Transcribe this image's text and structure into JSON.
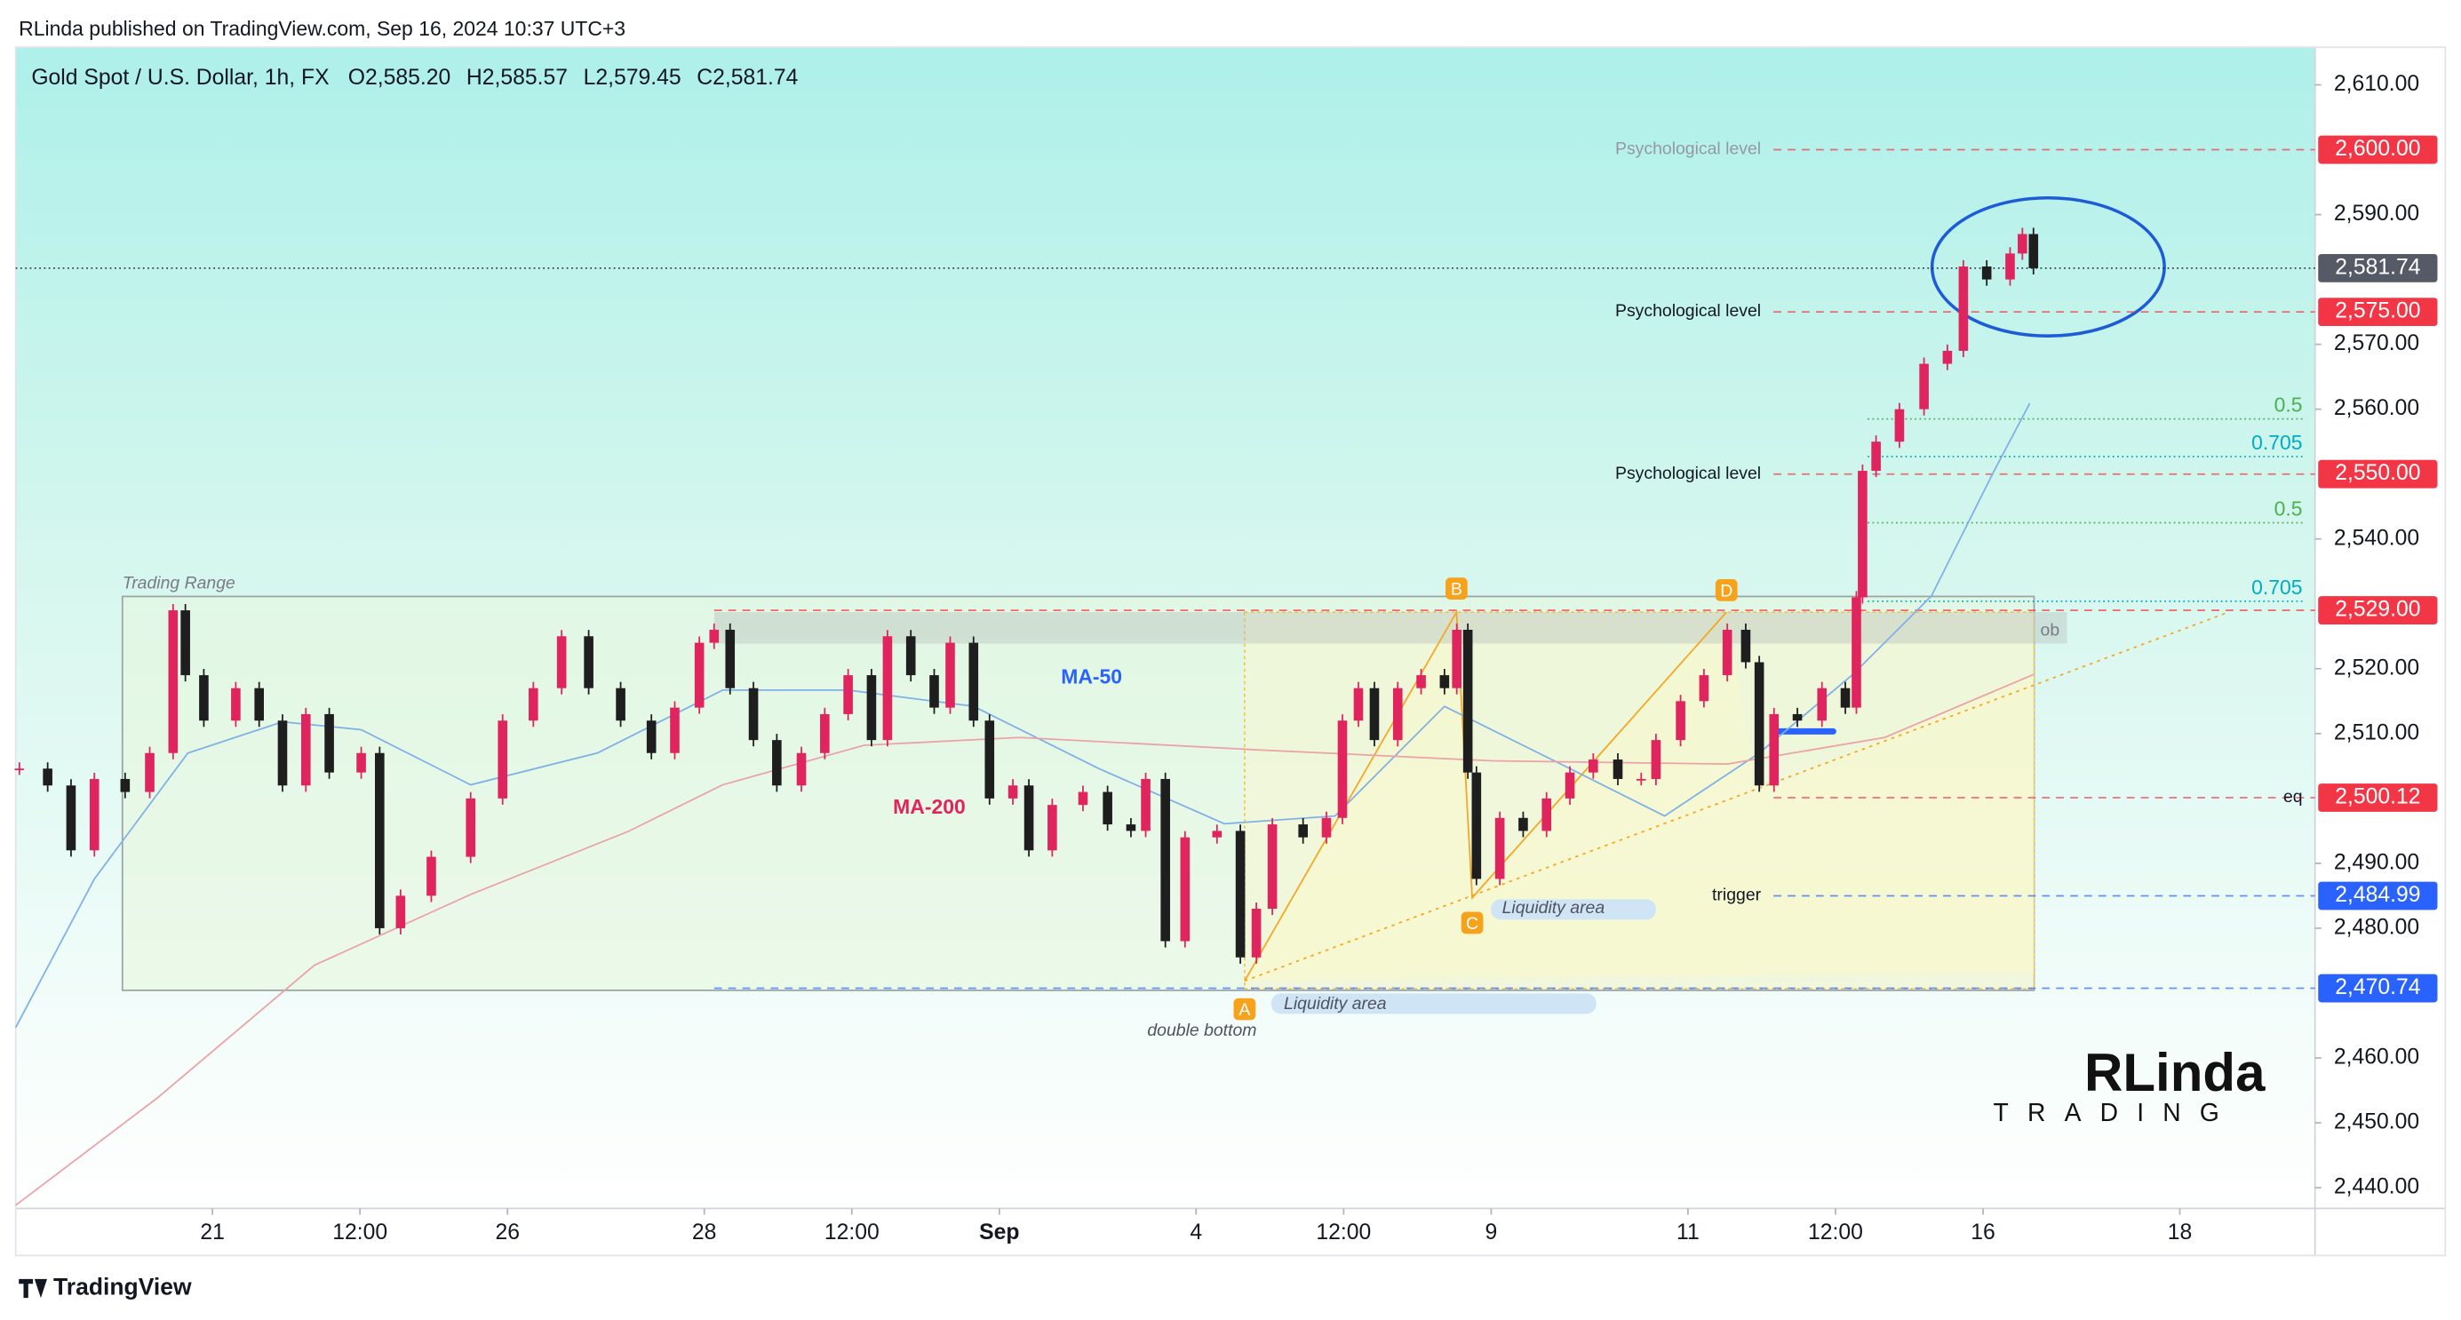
{
  "header": "RLinda published on TradingView.com, Sep 16, 2024 10:37 UTC+3",
  "footer": "TradingView",
  "logo": {
    "name": "RLinda",
    "sub": "TRADING"
  },
  "chart_data": {
    "type": "candlestick",
    "title": "Gold Spot / U.S. Dollar, 1h, FX",
    "ohlc": [
      {
        "name": "O",
        "value": 2585.2,
        "label": "2,585.20"
      },
      {
        "name": "H",
        "value": 2585.57,
        "label": "2,585.57"
      },
      {
        "name": "L",
        "value": 2579.45,
        "label": "2,579.45"
      },
      {
        "name": "C",
        "value": 2581.74,
        "label": "2,581.74"
      }
    ],
    "up_color": "#e0245e",
    "down_color": "#1e1e1e",
    "x": [
      0.3,
      2.6,
      4.5,
      6.4,
      8.9,
      10.9,
      12.8,
      13.8,
      15.3,
      17.9,
      19.8,
      21.7,
      23.6,
      25.5,
      28.1,
      29.6,
      31.3,
      33.8,
      37.0,
      39.6,
      42.1,
      44.4,
      46.6,
      49.2,
      51.7,
      53.6,
      55.6,
      56.8,
      58.1,
      60.0,
      61.9,
      63.9,
      65.8,
      67.7,
      69.6,
      70.9,
      72.8,
      74.7,
      76.0,
      77.9,
      79.2,
      81.1,
      82.4,
      84.3,
      86.8,
      88.8,
      90.7,
      91.9,
      93.5,
      95.1,
      97.7,
      99.6,
      100.9,
      102.2,
      104.7,
      106.6,
      107.9,
      109.2,
      110.5,
      112.4,
      114.3,
      116.2,
      117.2,
      118.1,
      118.8,
      120.7,
      122.6,
      124.5,
      126.4,
      128.3,
      130.3,
      132.2,
      133.4,
      135.4,
      137.3,
      139.2,
      140.7,
      141.8,
      143.0,
      144.9,
      146.9,
      148.8,
      149.7,
      150.2,
      151.3,
      153.2,
      155.2,
      157.1,
      158.4,
      160.3,
      162.2,
      163.2,
      164.1
    ],
    "values": [
      2504.6,
      2502,
      2492,
      2503,
      2501,
      2507,
      2529,
      2519,
      2512,
      2517,
      2512,
      2502,
      2513,
      2504,
      2507,
      2480,
      2485,
      2491,
      2500,
      2512,
      2517,
      2525,
      2517,
      2512,
      2507,
      2514,
      2524,
      2526,
      2517,
      2509,
      2502,
      2507,
      2513,
      2519,
      2509,
      2525,
      2519,
      2514,
      2524,
      2512,
      2500,
      2502,
      2492,
      2499,
      2501,
      2496,
      2495,
      2503,
      2478,
      2494,
      2495,
      2475.5,
      2483,
      2496,
      2494,
      2497,
      2512,
      2517,
      2509,
      2517,
      2519,
      2517,
      2526,
      2504,
      2487.6,
      2497,
      2495,
      2500,
      2504,
      2506,
      2503,
      2503,
      2509,
      2515,
      2519,
      2526,
      2521,
      2502,
      2513,
      2512,
      2517,
      2514,
      2531,
      2550.5,
      2555,
      2560,
      2567,
      2569,
      2582,
      2580,
      2584,
      2587,
      2581.74
    ],
    "ma": [
      {
        "name": "MA-50",
        "color": "#7fb0e6",
        "x": [
          0,
          6.4,
          14.0,
          21.7,
          28.1,
          37.0,
          47.3,
          57.5,
          67.7,
          77.9,
          88.1,
          98.3,
          107.3,
          116.2,
          126.4,
          134.1,
          141.8,
          149.4,
          155.8,
          160.9,
          163.8
        ],
        "values": [
          2464.7,
          2487.6,
          2507,
          2511.8,
          2510.6,
          2502.1,
          2507,
          2516.7,
          2516.7,
          2514.2,
          2504.6,
          2496.1,
          2497.3,
          2514.2,
          2504.6,
          2497.3,
          2507,
          2519.1,
          2531.2,
          2550.5,
          2560.9
        ]
      },
      {
        "name": "MA-200",
        "color": "#eba2a8",
        "x": [
          0,
          11.5,
          24.3,
          37.0,
          49.8,
          57.5,
          69.0,
          81.7,
          100.9,
          120.1,
          139.2,
          152.0,
          164.1
        ],
        "values": [
          2437.3,
          2453.8,
          2474.3,
          2485.2,
          2494.9,
          2502.1,
          2508.2,
          2509.4,
          2507.5,
          2505.8,
          2505.3,
          2509.4,
          2519.1
        ]
      }
    ],
    "xlim": [
      0,
      187
    ],
    "xticks": [
      {
        "value": 16,
        "label": "21"
      },
      {
        "value": 28,
        "label": "12:00"
      },
      {
        "value": 40,
        "label": "26"
      },
      {
        "value": 56,
        "label": "28"
      },
      {
        "value": 68,
        "label": "12:00"
      },
      {
        "value": 80,
        "label": "Sep"
      },
      {
        "value": 96,
        "label": "4"
      },
      {
        "value": 108,
        "label": "12:00"
      },
      {
        "value": 120,
        "label": "9"
      },
      {
        "value": 136,
        "label": "11"
      },
      {
        "value": 148,
        "label": "12:00"
      },
      {
        "value": 160,
        "label": "16"
      },
      {
        "value": 176,
        "label": "18"
      }
    ],
    "ylim": [
      2436.8,
      2615.8
    ],
    "yticks": [
      {
        "value": 2610,
        "label": "2,610.00"
      },
      {
        "value": 2590,
        "label": "2,590.00"
      },
      {
        "value": 2570,
        "label": "2,570.00"
      },
      {
        "value": 2560,
        "label": "2,560.00"
      },
      {
        "value": 2540,
        "label": "2,540.00"
      },
      {
        "value": 2520,
        "label": "2,520.00"
      },
      {
        "value": 2510,
        "label": "2,510.00"
      },
      {
        "value": 2490,
        "label": "2,490.00"
      },
      {
        "value": 2480,
        "label": "2,480.00"
      },
      {
        "value": 2460,
        "label": "2,460.00"
      },
      {
        "value": 2450,
        "label": "2,450.00"
      },
      {
        "value": 2440,
        "label": "2,440.00"
      }
    ],
    "levels": [
      {
        "value": 2600,
        "label": "2,600.00",
        "color": "#f23645",
        "text": "Psychological level"
      },
      {
        "value": 2581.74,
        "label": "2,581.74",
        "color": "#555a66"
      },
      {
        "value": 2575,
        "label": "2,575.00",
        "color": "#f23645",
        "text": "Psychological level"
      },
      {
        "value": 2550,
        "label": "2,550.00",
        "color": "#f23645",
        "text": "Psychological level"
      },
      {
        "value": 2529,
        "label": "2,529.00",
        "color": "#f23645"
      },
      {
        "value": 2500.12,
        "label": "2,500.12",
        "color": "#f23645",
        "text": "eq"
      },
      {
        "value": 2484.99,
        "label": "2,484.99",
        "color": "#2962ff",
        "text": "trigger"
      },
      {
        "value": 2470.74,
        "label": "2,470.74",
        "color": "#2962ff"
      }
    ],
    "fib": [
      {
        "value": 2558.5,
        "label": "0.5",
        "color": "#4caf50"
      },
      {
        "value": 2552.7,
        "label": "0.705",
        "color": "#00acc1"
      },
      {
        "value": 2542.5,
        "label": "0.5",
        "color": "#4caf50"
      },
      {
        "value": 2530.4,
        "label": "0.705",
        "color": "#00acc1"
      }
    ],
    "annotations": [
      "Trading Range",
      "MA-50",
      "MA-200",
      "double bottom",
      "Liquidity area",
      "Liquidity area",
      "ob",
      "A",
      "B",
      "C",
      "D"
    ]
  }
}
